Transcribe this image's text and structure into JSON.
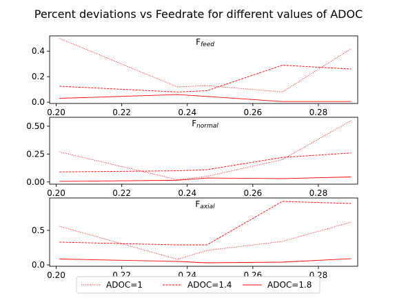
{
  "figure_title": "Percent deviations vs Feedrate for different values of ADOC",
  "colors": {
    "series": "#ff0000",
    "axis": "#000000",
    "legend_border": "#cccccc"
  },
  "chart_data": [
    {
      "type": "line",
      "title_main": "F",
      "title_sub": "feed",
      "x": [
        0.201,
        0.237,
        0.246,
        0.269,
        0.29
      ],
      "series": [
        {
          "name": "ADOC=1",
          "style": "dotted",
          "values": [
            0.5,
            0.12,
            0.13,
            0.08,
            0.42
          ]
        },
        {
          "name": "ADOC=1.4",
          "style": "dashed",
          "values": [
            0.125,
            0.08,
            0.09,
            0.29,
            0.26
          ]
        },
        {
          "name": "ADOC=1.8",
          "style": "solid",
          "values": [
            0.03,
            0.06,
            0.045,
            0.005,
            0.005
          ]
        }
      ],
      "xlim": [
        0.198,
        0.292
      ],
      "ylim": [
        -0.01,
        0.52
      ],
      "xticks": [
        0.2,
        0.22,
        0.24,
        0.26,
        0.28
      ],
      "xtick_labels": [
        "0.20",
        "0.22",
        "0.24",
        "0.26",
        "0.28"
      ],
      "yticks": [
        0.0,
        0.2,
        0.4
      ],
      "ytick_labels": [
        "0.0",
        "0.2",
        "0.4"
      ],
      "grid": false
    },
    {
      "type": "line",
      "title_main": "F",
      "title_sub": "normal",
      "x": [
        0.201,
        0.237,
        0.246,
        0.269,
        0.29
      ],
      "series": [
        {
          "name": "ADOC=1",
          "style": "dotted",
          "values": [
            0.27,
            0.02,
            0.05,
            0.2,
            0.55
          ]
        },
        {
          "name": "ADOC=1.4",
          "style": "dashed",
          "values": [
            0.09,
            0.1,
            0.11,
            0.22,
            0.26
          ]
        },
        {
          "name": "ADOC=1.8",
          "style": "solid",
          "values": [
            0.005,
            0.015,
            0.035,
            0.03,
            0.045
          ]
        }
      ],
      "xlim": [
        0.198,
        0.292
      ],
      "ylim": [
        -0.02,
        0.58
      ],
      "xticks": [
        0.2,
        0.22,
        0.24,
        0.26,
        0.28
      ],
      "xtick_labels": [
        "0.20",
        "0.22",
        "0.24",
        "0.26",
        "0.28"
      ],
      "yticks": [
        0.0,
        0.25,
        0.5
      ],
      "ytick_labels": [
        "0.00",
        "0.25",
        "0.50"
      ],
      "grid": false
    },
    {
      "type": "line",
      "title_main": "F",
      "title_sub": "axial",
      "x": [
        0.201,
        0.237,
        0.246,
        0.269,
        0.29
      ],
      "series": [
        {
          "name": "ADOC=1",
          "style": "dotted",
          "values": [
            0.56,
            0.08,
            0.21,
            0.34,
            0.62
          ]
        },
        {
          "name": "ADOC=1.4",
          "style": "dashed",
          "values": [
            0.33,
            0.29,
            0.29,
            0.92,
            0.89
          ]
        },
        {
          "name": "ADOC=1.8",
          "style": "solid",
          "values": [
            0.085,
            0.05,
            0.03,
            0.04,
            0.09
          ]
        }
      ],
      "xlim": [
        0.198,
        0.292
      ],
      "ylim": [
        -0.02,
        0.97
      ],
      "xticks": [
        0.2,
        0.22,
        0.24,
        0.26,
        0.28
      ],
      "xtick_labels": [
        "0.20",
        "0.22",
        "0.24",
        "0.26",
        "0.28"
      ],
      "yticks": [
        0.0,
        0.5
      ],
      "ytick_labels": [
        "0.0",
        "0.5"
      ],
      "grid": false
    }
  ],
  "legend": {
    "placement": "bottom-center",
    "entries": [
      {
        "label": "ADOC=1",
        "style": "dotted"
      },
      {
        "label": "ADOC=1.4",
        "style": "dashed"
      },
      {
        "label": "ADOC=1.8",
        "style": "solid"
      }
    ]
  }
}
